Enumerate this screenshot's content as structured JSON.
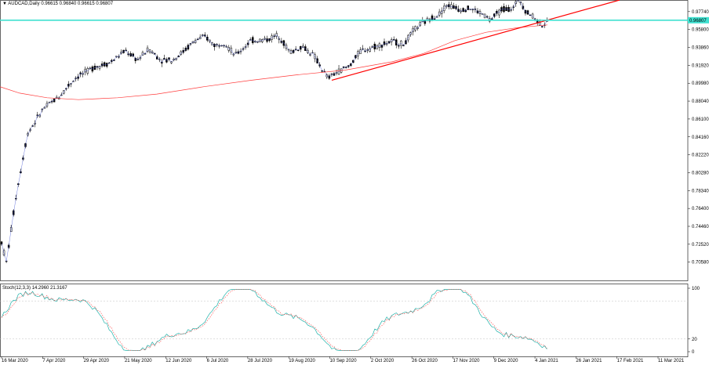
{
  "chart": {
    "symbol_label": "AUDCAD,Daily",
    "ohlc_text": "0.96615 0.96840 0.96615 0.96807",
    "current_price": "0.96807",
    "osc_label": "Stoch(12,3,3)",
    "osc_values": "14.2960 21.3167"
  },
  "chart_data": {
    "type": "candlestick",
    "price_axis_labels": [
      "0.97740",
      "0.95800",
      "0.93860",
      "0.91920",
      "0.89980",
      "0.88040",
      "0.86100",
      "0.84160",
      "0.82220",
      "0.80280",
      "0.78340",
      "0.76400",
      "0.74460",
      "0.72520",
      "0.70580",
      "0.68640"
    ],
    "price_ylim": [
      0.686,
      0.99
    ],
    "osc_axis_labels": [
      "100",
      "20",
      "0"
    ],
    "time_labels": [
      "16 Mar 2020",
      "7 Apr 2020",
      "29 Apr 2020",
      "21 May 2020",
      "12 Jun 2020",
      "6 Jul 2020",
      "28 Jul 2020",
      "19 Aug 2020",
      "10 Sep 2020",
      "2 Oct 2020",
      "26 Oct 2020",
      "17 Nov 2020",
      "9 Dec 2020",
      "4 Jan 2021",
      "26 Jan 2021",
      "17 Feb 2021",
      "11 Mar 2021"
    ],
    "horizontal_level": 0.96807,
    "colors": {
      "bull": "#000000",
      "bear": "#000000",
      "ma": "#ff3b3b",
      "trendline": "#ff0000",
      "hline": "#40e0d0",
      "stoch_main": "#20b2aa",
      "stoch_signal": "#ff4040"
    }
  }
}
